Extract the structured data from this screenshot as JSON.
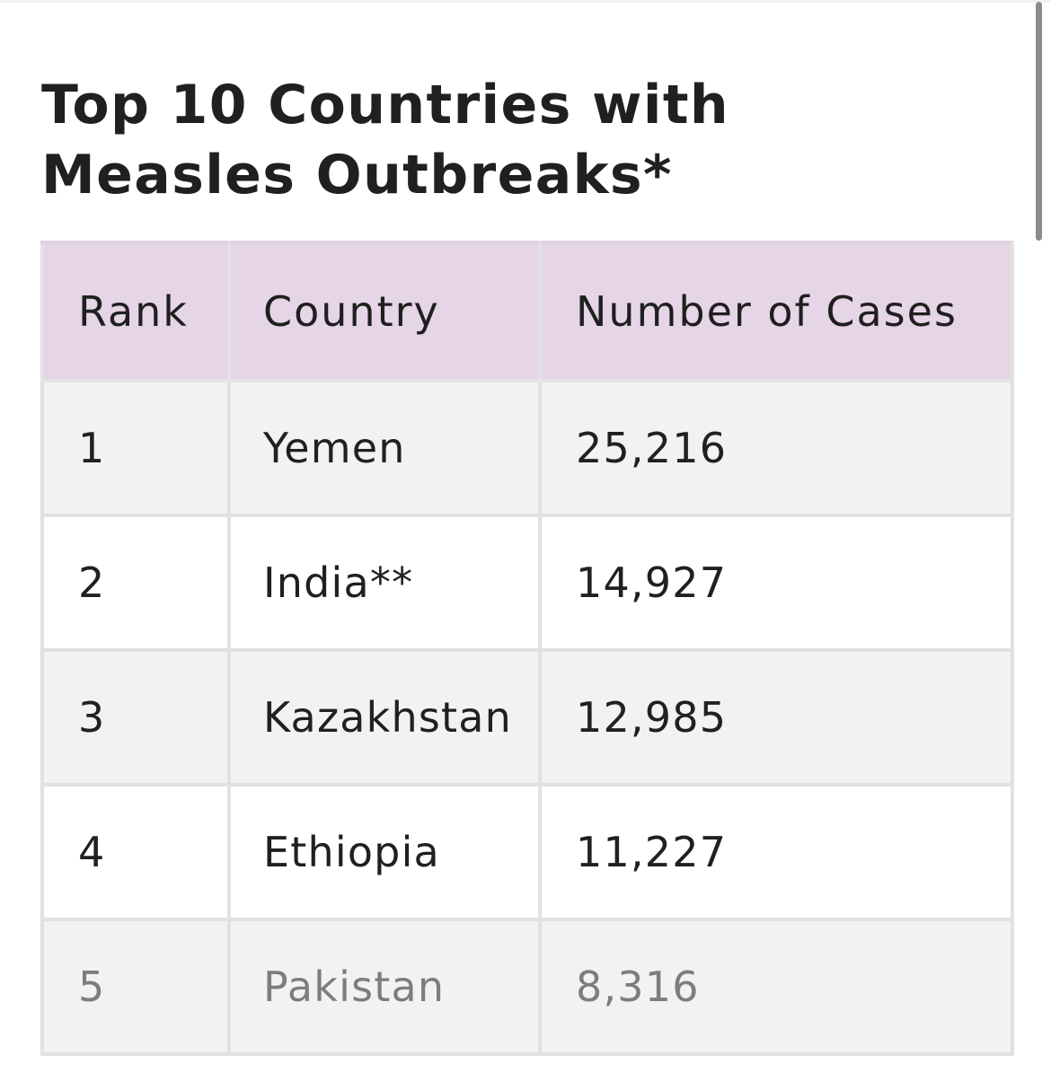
{
  "title": "Top 10 Countries with Measles Outbreaks*",
  "table": {
    "headers": {
      "rank": "Rank",
      "country": "Country",
      "cases": "Number of Cases"
    },
    "rows": [
      {
        "rank": "1",
        "country": "Yemen",
        "cases": "25,216"
      },
      {
        "rank": "2",
        "country": "India**",
        "cases": "14,927"
      },
      {
        "rank": "3",
        "country": "Kazakhstan",
        "cases": "12,985"
      },
      {
        "rank": "4",
        "country": "Ethiopia",
        "cases": "11,227"
      },
      {
        "rank": "5",
        "country": "Pakistan",
        "cases": "8,316"
      }
    ]
  },
  "colors": {
    "header_background": "#e6d5e6",
    "row_odd": "#f2f2f2",
    "row_even": "#ffffff",
    "border": "#e1e1e1",
    "faded_text": "#7d7d7d"
  }
}
